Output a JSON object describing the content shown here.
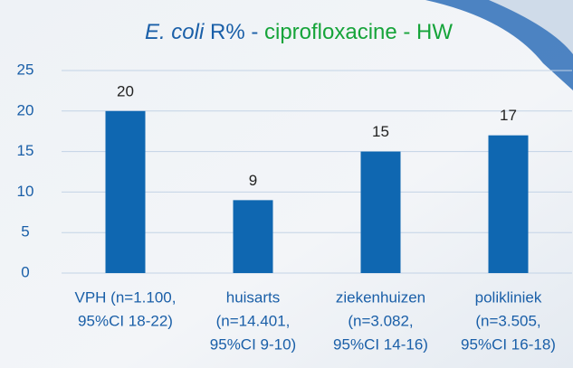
{
  "chart_data": {
    "type": "bar",
    "title": [
      "E. coli",
      " R% - ",
      "ciprofloxacine - HW"
    ],
    "categories": [
      [
        "VPH (n=1.100,",
        "95%CI 18-22)"
      ],
      [
        "huisarts",
        "(n=14.401,",
        "95%CI 9-10)"
      ],
      [
        "ziekenhuizen",
        "(n=3.082,",
        "95%CI 14-16)"
      ],
      [
        "polikliniek",
        "(n=3.505,",
        "95%CI 16-18)"
      ]
    ],
    "values": [
      20,
      9,
      15,
      17
    ],
    "color": "#0f67b1",
    "ylim": [
      0,
      25
    ],
    "yticks": [
      0,
      5,
      10,
      15,
      20,
      25
    ],
    "grid": true
  }
}
